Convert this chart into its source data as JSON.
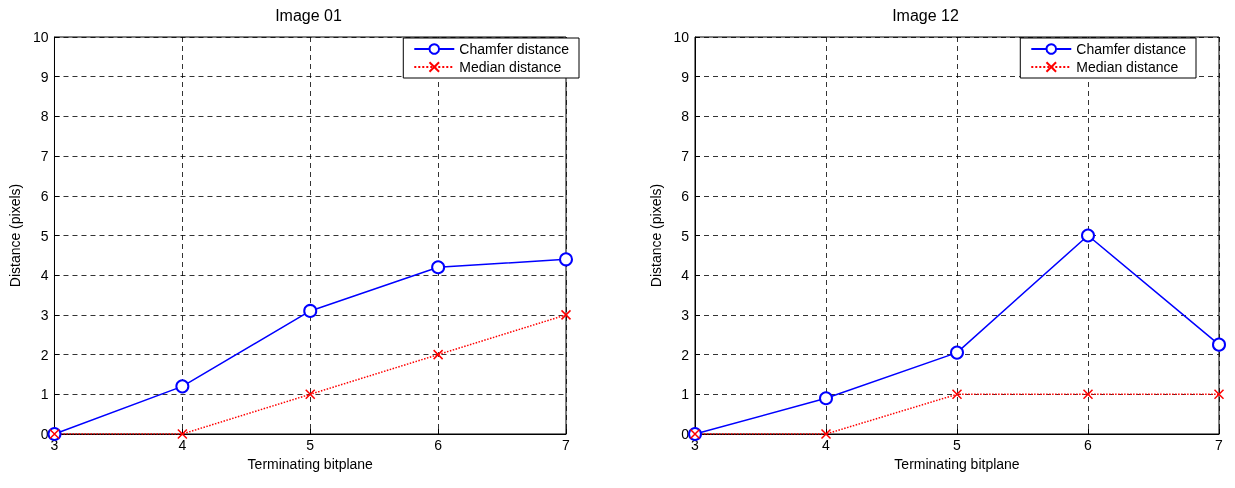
{
  "chart_data": [
    {
      "type": "line",
      "title": "Image 01",
      "xlabel": "Terminating bitplane",
      "ylabel": "Distance (pixels)",
      "x": [
        3,
        4,
        5,
        6,
        7
      ],
      "xlim": [
        3,
        7
      ],
      "xticks": [
        3,
        4,
        5,
        6,
        7
      ],
      "ylim": [
        0,
        10
      ],
      "yticks": [
        0,
        1,
        2,
        3,
        4,
        5,
        6,
        7,
        8,
        9,
        10
      ],
      "grid": true,
      "legend": "top right",
      "series": [
        {
          "name": "Chamfer distance",
          "color": "#0000ff",
          "marker": "circle",
          "line_style": "solid",
          "values": [
            0,
            1.2,
            3.1,
            4.2,
            4.4
          ]
        },
        {
          "name": "Median distance",
          "color": "#ff0000",
          "marker": "cross",
          "line_style": "dotted",
          "values": [
            0,
            0,
            1,
            2,
            3
          ]
        }
      ]
    },
    {
      "type": "line",
      "title": "Image 12",
      "xlabel": "Terminating bitplane",
      "ylabel": "Distance (pixels)",
      "x": [
        3,
        4,
        5,
        6,
        7
      ],
      "xlim": [
        3,
        7
      ],
      "xticks": [
        3,
        4,
        5,
        6,
        7
      ],
      "ylim": [
        0,
        10
      ],
      "yticks": [
        0,
        1,
        2,
        3,
        4,
        5,
        6,
        7,
        8,
        9,
        10
      ],
      "grid": true,
      "legend": "top right",
      "series": [
        {
          "name": "Chamfer distance",
          "color": "#0000ff",
          "marker": "circle",
          "line_style": "solid",
          "values": [
            0,
            0.9,
            2.05,
            5,
            2.25
          ]
        },
        {
          "name": "Median distance",
          "color": "#ff0000",
          "marker": "cross",
          "line_style": "dotted",
          "values": [
            0,
            0,
            1,
            1,
            1
          ]
        }
      ]
    }
  ]
}
